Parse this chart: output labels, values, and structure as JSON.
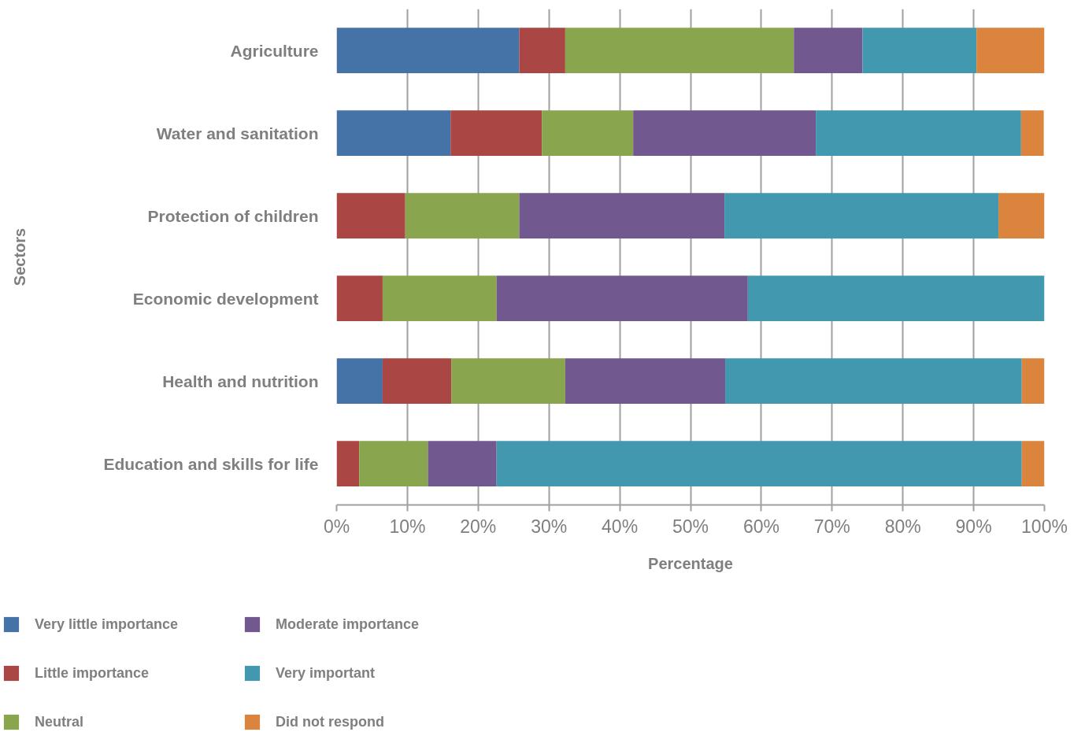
{
  "chart_data": {
    "type": "bar",
    "orientation": "horizontal",
    "stacked": true,
    "xlabel": "Percentage",
    "ylabel": "Sectors",
    "categories": [
      "Agriculture",
      "Water and sanitation",
      "Protection of children",
      "Economic development",
      "Health and nutrition",
      "Education and skills for life"
    ],
    "series": [
      {
        "name": "Very little importance",
        "color": "#4572a7",
        "values": [
          25.8,
          16.1,
          0,
          0,
          6.5,
          0
        ]
      },
      {
        "name": "Little importance",
        "color": "#aa4643",
        "values": [
          6.5,
          12.9,
          9.7,
          6.5,
          9.7,
          3.2
        ]
      },
      {
        "name": "Neutral",
        "color": "#89a54e",
        "values": [
          32.3,
          12.9,
          16.1,
          16.1,
          16.1,
          9.7
        ]
      },
      {
        "name": "Moderate importance",
        "color": "#71588f",
        "values": [
          9.7,
          25.8,
          29.0,
          35.5,
          22.6,
          9.7
        ]
      },
      {
        "name": "Very important",
        "color": "#4198af",
        "values": [
          16.1,
          29.0,
          38.7,
          41.9,
          41.9,
          74.2
        ]
      },
      {
        "name": "Did not respond",
        "color": "#db843d",
        "values": [
          9.6,
          3.2,
          6.5,
          0,
          3.2,
          3.2
        ]
      }
    ],
    "xlim": [
      0,
      100
    ],
    "xticks": [
      {
        "value": 0,
        "label": "0%"
      },
      {
        "value": 10,
        "label": "10%"
      },
      {
        "value": 20,
        "label": "20%"
      },
      {
        "value": 30,
        "label": "30%"
      },
      {
        "value": 40,
        "label": "40%"
      },
      {
        "value": 50,
        "label": "50%"
      },
      {
        "value": 60,
        "label": "60%"
      },
      {
        "value": 70,
        "label": "70%"
      },
      {
        "value": 80,
        "label": "80%"
      },
      {
        "value": 90,
        "label": "90%"
      },
      {
        "value": 100,
        "label": "100%"
      }
    ],
    "grid": "x",
    "legend": "bottom left"
  }
}
